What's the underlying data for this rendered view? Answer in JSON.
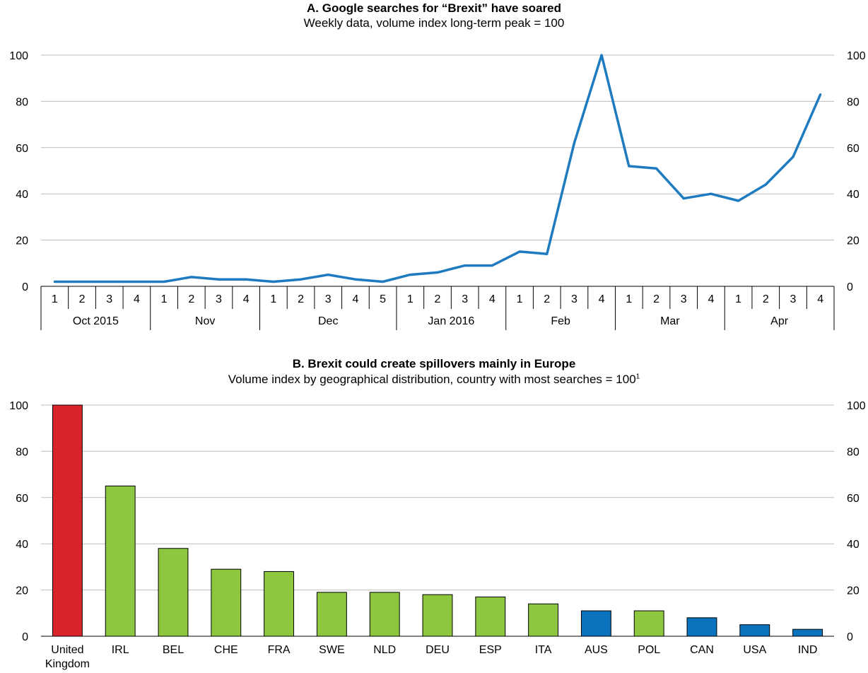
{
  "colors": {
    "line": "#1f7bbf",
    "uk": "#d9232a",
    "europe": "#8dc63f",
    "non_europe": "#0b72bd",
    "grid": "#bdbdbd"
  },
  "chart_data": [
    {
      "type": "line",
      "title": "A. Google searches for “Brexit” have soared",
      "subtitle": "Weekly data, volume index long-term peak = 100",
      "ylim": [
        0,
        100
      ],
      "yticks": [
        0,
        20,
        40,
        60,
        80,
        100
      ],
      "grid": true,
      "dual_y_axis": true,
      "months": [
        {
          "label": "Oct 2015",
          "weeks": [
            "1",
            "2",
            "3",
            "4"
          ]
        },
        {
          "label": "Nov",
          "weeks": [
            "1",
            "2",
            "3",
            "4"
          ]
        },
        {
          "label": "Dec",
          "weeks": [
            "1",
            "2",
            "3",
            "4",
            "5"
          ]
        },
        {
          "label": "Jan 2016",
          "weeks": [
            "1",
            "2",
            "3",
            "4"
          ]
        },
        {
          "label": "Feb",
          "weeks": [
            "1",
            "2",
            "3",
            "4"
          ]
        },
        {
          "label": "Mar",
          "weeks": [
            "1",
            "2",
            "3",
            "4"
          ]
        },
        {
          "label": "Apr",
          "weeks": [
            "1",
            "2",
            "3",
            "4"
          ]
        }
      ],
      "values": [
        2,
        2,
        2,
        2,
        2,
        4,
        3,
        3,
        2,
        3,
        5,
        3,
        2,
        5,
        6,
        9,
        9,
        15,
        14,
        62,
        100,
        52,
        51,
        38,
        40,
        37,
        44,
        56,
        83
      ]
    },
    {
      "type": "bar",
      "title": "B. Brexit could create spillovers mainly in Europe",
      "subtitle": "Volume index by geographical distribution, country with most searches = 100",
      "subtitle_footnote": "1",
      "ylim": [
        0,
        100
      ],
      "yticks": [
        0,
        20,
        40,
        60,
        80,
        100
      ],
      "grid": true,
      "dual_y_axis": true,
      "categories": [
        "United Kingdom",
        "IRL",
        "BEL",
        "CHE",
        "FRA",
        "SWE",
        "NLD",
        "DEU",
        "ESP",
        "ITA",
        "AUS",
        "POL",
        "CAN",
        "USA",
        "IND"
      ],
      "values": [
        100,
        65,
        38,
        29,
        28,
        19,
        19,
        18,
        17,
        14,
        11,
        11,
        8,
        5,
        3
      ],
      "groups": [
        "uk",
        "europe",
        "europe",
        "europe",
        "europe",
        "europe",
        "europe",
        "europe",
        "europe",
        "europe",
        "non_europe",
        "europe",
        "non_europe",
        "non_europe",
        "non_europe"
      ]
    }
  ]
}
